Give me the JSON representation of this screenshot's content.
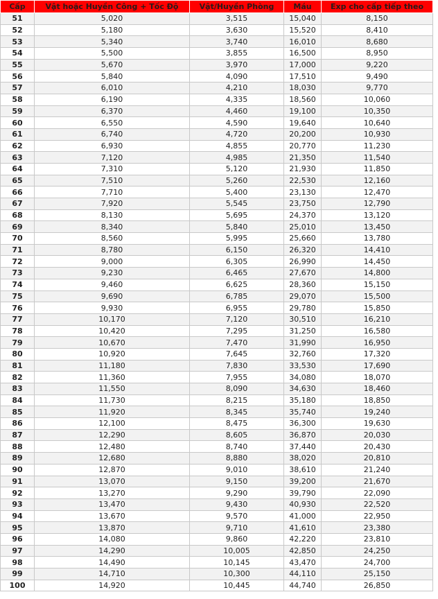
{
  "table": {
    "headers": [
      "Cấp",
      "Vật hoặc Huyền Công + Tốc Độ",
      "Vật/Huyền Phòng",
      "Máu",
      "Exp cho cấp tiếp theo"
    ],
    "header_color": "#ff0000",
    "rows": [
      [
        "51",
        "5,020",
        "3,515",
        "15,040",
        "8,150"
      ],
      [
        "52",
        "5,180",
        "3,630",
        "15,520",
        "8,410"
      ],
      [
        "53",
        "5,340",
        "3,740",
        "16,010",
        "8,680"
      ],
      [
        "54",
        "5,500",
        "3,855",
        "16,500",
        "8,950"
      ],
      [
        "55",
        "5,670",
        "3,970",
        "17,000",
        "9,220"
      ],
      [
        "56",
        "5,840",
        "4,090",
        "17,510",
        "9,490"
      ],
      [
        "57",
        "6,010",
        "4,210",
        "18,030",
        "9,770"
      ],
      [
        "58",
        "6,190",
        "4,335",
        "18,560",
        "10,060"
      ],
      [
        "59",
        "6,370",
        "4,460",
        "19,100",
        "10,350"
      ],
      [
        "60",
        "6,550",
        "4,590",
        "19,640",
        "10,640"
      ],
      [
        "61",
        "6,740",
        "4,720",
        "20,200",
        "10,930"
      ],
      [
        "62",
        "6,930",
        "4,855",
        "20,770",
        "11,230"
      ],
      [
        "63",
        "7,120",
        "4,985",
        "21,350",
        "11,540"
      ],
      [
        "64",
        "7,310",
        "5,120",
        "21,930",
        "11,850"
      ],
      [
        "65",
        "7,510",
        "5,260",
        "22,530",
        "12,160"
      ],
      [
        "66",
        "7,710",
        "5,400",
        "23,130",
        "12,470"
      ],
      [
        "67",
        "7,920",
        "5,545",
        "23,750",
        "12,790"
      ],
      [
        "68",
        "8,130",
        "5,695",
        "24,370",
        "13,120"
      ],
      [
        "69",
        "8,340",
        "5,840",
        "25,010",
        "13,450"
      ],
      [
        "70",
        "8,560",
        "5,995",
        "25,660",
        "13,780"
      ],
      [
        "71",
        "8,780",
        "6,150",
        "26,320",
        "14,410"
      ],
      [
        "72",
        "9,000",
        "6,305",
        "26,990",
        "14,450"
      ],
      [
        "73",
        "9,230",
        "6,465",
        "27,670",
        "14,800"
      ],
      [
        "74",
        "9,460",
        "6,625",
        "28,360",
        "15,150"
      ],
      [
        "75",
        "9,690",
        "6,785",
        "29,070",
        "15,500"
      ],
      [
        "76",
        "9,930",
        "6,955",
        "29,780",
        "15,850"
      ],
      [
        "77",
        "10,170",
        "7,120",
        "30,510",
        "16,210"
      ],
      [
        "78",
        "10,420",
        "7,295",
        "31,250",
        "16,580"
      ],
      [
        "79",
        "10,670",
        "7,470",
        "31,990",
        "16,950"
      ],
      [
        "80",
        "10,920",
        "7,645",
        "32,760",
        "17,320"
      ],
      [
        "81",
        "11,180",
        "7,830",
        "33,530",
        "17,690"
      ],
      [
        "82",
        "11,360",
        "7,955",
        "34,080",
        "18,070"
      ],
      [
        "83",
        "11,550",
        "8,090",
        "34,630",
        "18,460"
      ],
      [
        "84",
        "11,730",
        "8,215",
        "35,180",
        "18,850"
      ],
      [
        "85",
        "11,920",
        "8,345",
        "35,740",
        "19,240"
      ],
      [
        "86",
        "12,100",
        "8,475",
        "36,300",
        "19,630"
      ],
      [
        "87",
        "12,290",
        "8,605",
        "36,870",
        "20,030"
      ],
      [
        "88",
        "12,480",
        "8,740",
        "37,440",
        "20,430"
      ],
      [
        "89",
        "12,680",
        "8,880",
        "38,020",
        "20,810"
      ],
      [
        "90",
        "12,870",
        "9,010",
        "38,610",
        "21,240"
      ],
      [
        "91",
        "13,070",
        "9,150",
        "39,200",
        "21,670"
      ],
      [
        "92",
        "13,270",
        "9,290",
        "39,790",
        "22,090"
      ],
      [
        "93",
        "13,470",
        "9,430",
        "40,930",
        "22,520"
      ],
      [
        "94",
        "13,670",
        "9,570",
        "41,000",
        "22,950"
      ],
      [
        "95",
        "13,870",
        "9,710",
        "41,610",
        "23,380"
      ],
      [
        "96",
        "14,080",
        "9,860",
        "42,220",
        "23,810"
      ],
      [
        "97",
        "14,290",
        "10,005",
        "42,850",
        "24,250"
      ],
      [
        "98",
        "14,490",
        "10,145",
        "43,470",
        "24,700"
      ],
      [
        "99",
        "14,710",
        "10,300",
        "44,110",
        "25,150"
      ],
      [
        "100",
        "14,920",
        "10,445",
        "44,740",
        "26,850"
      ]
    ]
  }
}
